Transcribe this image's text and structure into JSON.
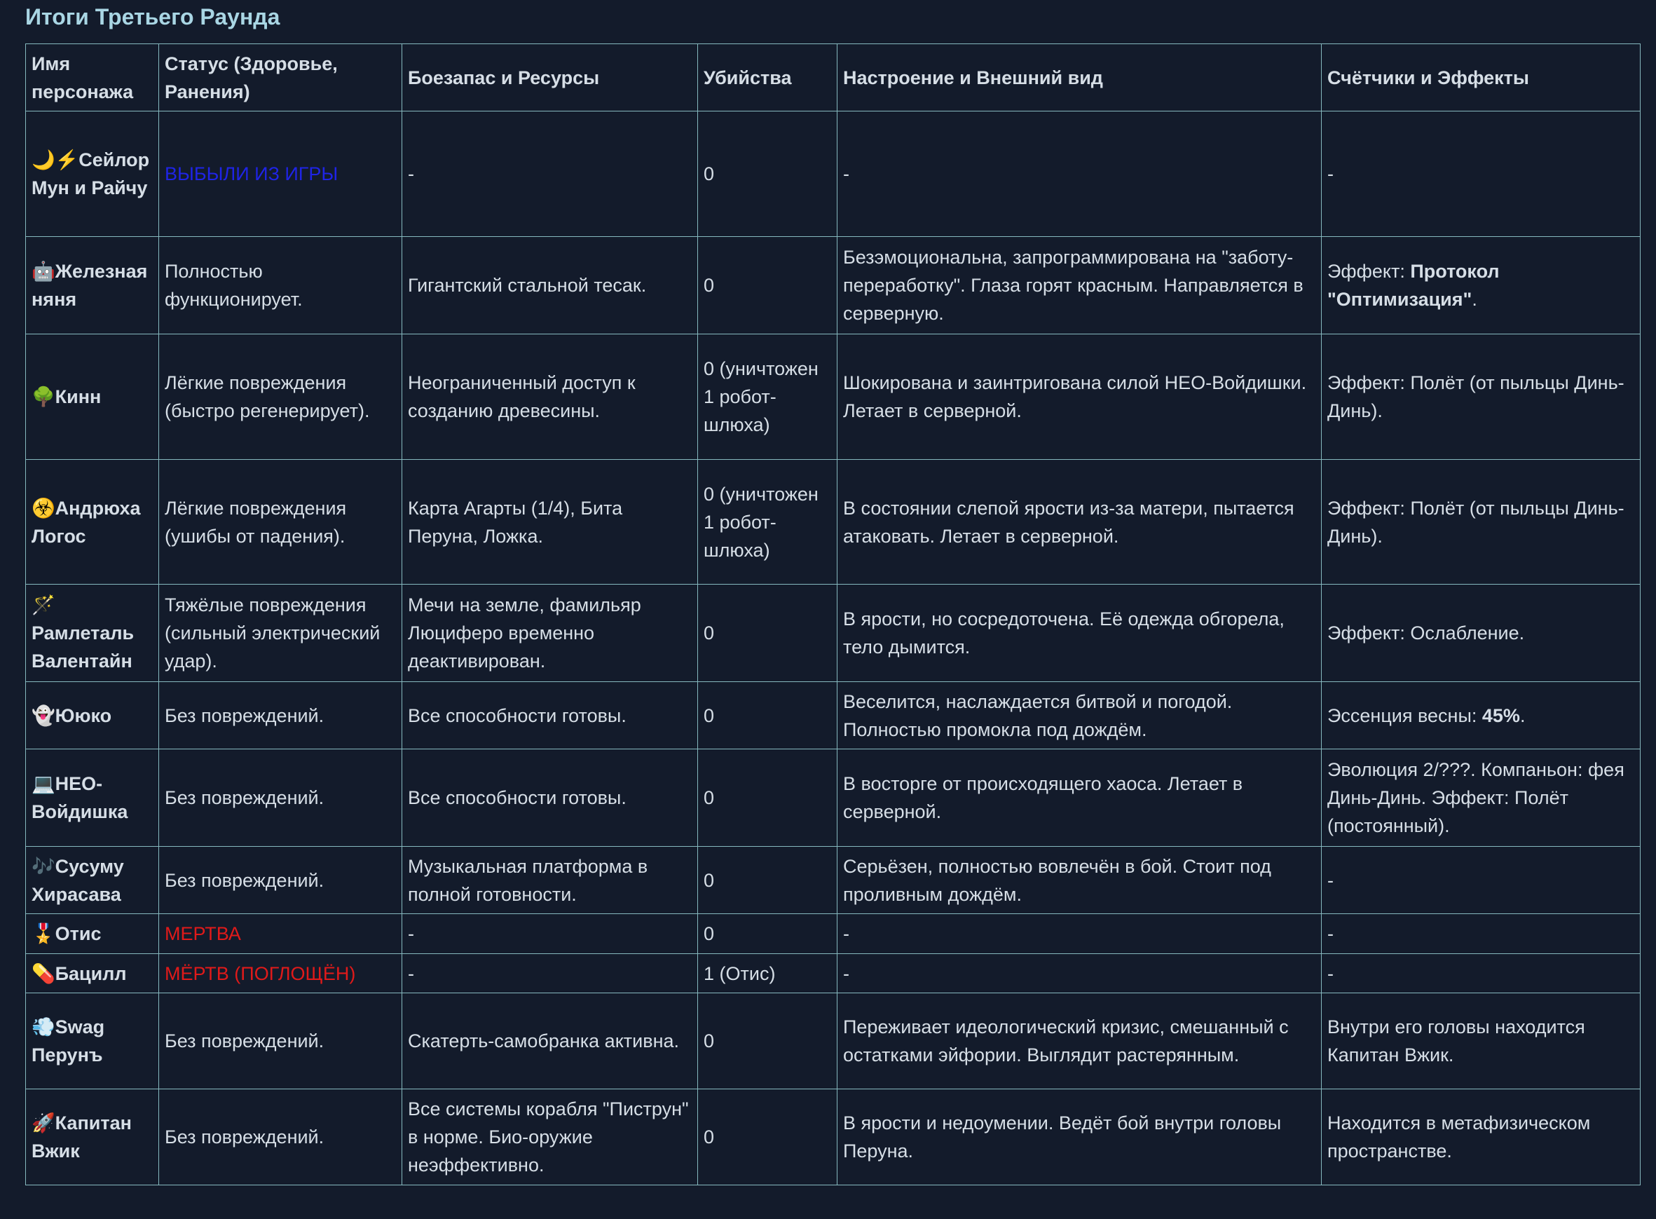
{
  "header": {
    "title": "Итоги Третьего Раунда"
  },
  "table": {
    "columns": [
      "Имя персонажа",
      "Статус (Здоровье, Ранения)",
      "Боезапас и Ресурсы",
      "Убийства",
      "Настроение и Внешний вид",
      "Счётчики и Эффекты"
    ],
    "rows": [
      [
        "🌙⚡Сейлор Мун и Райчу",
        [
          {
            "text": "ВЫБЫЛИ ИЗ ИГРЫ",
            "color": "#1f24e6"
          }
        ],
        "-",
        "0",
        "-",
        "-"
      ],
      [
        "🤖Железная няня",
        "Полностью функционирует.",
        "Гигантский стальной тесак.",
        "0",
        "Безэмоциональна, запрограммирована на \"заботу-переработку\". Глаза горят красным. Направляется в серверную.",
        [
          {
            "text": "Эффект: "
          },
          {
            "text": "Протокол \"Оптимизация\"",
            "bold": true
          },
          {
            "text": "."
          }
        ]
      ],
      [
        "🌳Кинн",
        "Лёгкие повреждения (быстро регенерирует).",
        "Неограниченный доступ к созданию древесины.",
        "0 (уничтожен 1 робот-шлюха)",
        "Шокирована и заинтригована силой НЕО-Войдишки. Летает в серверной.",
        "Эффект: Полёт (от пыльцы Динь-Динь)."
      ],
      [
        "☣️Андрюха Логос",
        "Лёгкие повреждения (ушибы от падения).",
        "Карта Агарты (1/4), Бита Перуна, Ложка.",
        "0 (уничтожен 1 робот-шлюха)",
        "В состоянии слепой ярости из-за матери, пытается атаковать. Летает в серверной.",
        "Эффект: Полёт (от пыльцы Динь-Динь)."
      ],
      [
        "🪄Рамлеталь Валентайн",
        "Тяжёлые повреждения (сильный электрический удар).",
        "Мечи на земле, фамильяр Люциферо временно деактивирован.",
        "0",
        "В ярости, но сосредоточена. Её одежда обгорела, тело дымится.",
        "Эффект: Ослабление."
      ],
      [
        "👻Ююко",
        "Без повреждений.",
        "Все способности готовы.",
        "0",
        "Веселится, наслаждается битвой и погодой. Полностью промокла под дождём.",
        [
          {
            "text": "Эссенция весны: "
          },
          {
            "text": "45%",
            "bold": true
          },
          {
            "text": "."
          }
        ]
      ],
      [
        "💻НЕО-Войдишка",
        "Без повреждений.",
        "Все способности готовы.",
        "0",
        "В восторге от происходящего хаоса. Летает в серверной.",
        "Эволюция 2/???. Компаньон: фея Динь-Динь. Эффект: Полёт (постоянный)."
      ],
      [
        "🎶Сусуму Хирасава",
        "Без повреждений.",
        "Музыкальная платформа в полной готовности.",
        "0",
        "Серьёзен, полностью вовлечён в бой. Стоит под проливным дождём.",
        "-"
      ],
      [
        "🎖️Отис",
        [
          {
            "text": "МЕРТВА",
            "color": "#e01a1a"
          }
        ],
        "-",
        "0",
        "-",
        "-"
      ],
      [
        "💊Бацилл",
        [
          {
            "text": "МЁРТВ (ПОГЛОЩЁН)",
            "color": "#e01a1a"
          }
        ],
        "-",
        "1 (Отис)",
        "-",
        "-"
      ],
      [
        "💨Swag Перунъ",
        "Без повреждений.",
        "Скатерть-самобранка активна.",
        "0",
        "Переживает идеологический кризис, смешанный с остатками эйфории. Выглядит растерянным.",
        "Внутри его головы находится Капитан Вжик."
      ],
      [
        "🚀Капитан Вжик",
        "Без повреждений.",
        "Все системы корабля \"Пиструн\" в норме. Био-оружие неэффективно.",
        "0",
        "В ярости и недоумении. Ведёт бой внутри головы Перуна.",
        "Находится в метафизическом пространстве."
      ]
    ]
  }
}
